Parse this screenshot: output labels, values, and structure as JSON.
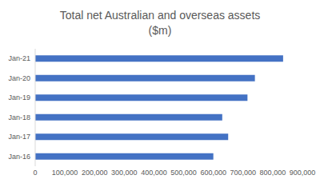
{
  "chart_data": {
    "type": "bar",
    "orientation": "horizontal",
    "title": [
      "Total net Australian and overseas assets",
      "($m)"
    ],
    "categories": [
      "Jan-16",
      "Jan-17",
      "Jan-18",
      "Jan-19",
      "Jan-20",
      "Jan-21"
    ],
    "values": [
      600000,
      650000,
      630000,
      715000,
      740000,
      835000
    ],
    "color": "#4472c4",
    "ylim": [
      0,
      900000
    ],
    "yticks": [
      0,
      {
        "value": 100000,
        "label": "100,000"
      },
      {
        "value": 200000,
        "label": "200,000"
      },
      {
        "value": 300000,
        "label": "300,000"
      },
      {
        "value": 400000,
        "label": "400,000"
      },
      {
        "value": 500000,
        "label": "500,000"
      },
      {
        "value": 600000,
        "label": "600,000"
      },
      {
        "value": 700000,
        "label": "700,000"
      },
      {
        "value": 800000,
        "label": "800,000"
      },
      {
        "value": 900000,
        "label": "900,000"
      }
    ],
    "grid": false
  }
}
